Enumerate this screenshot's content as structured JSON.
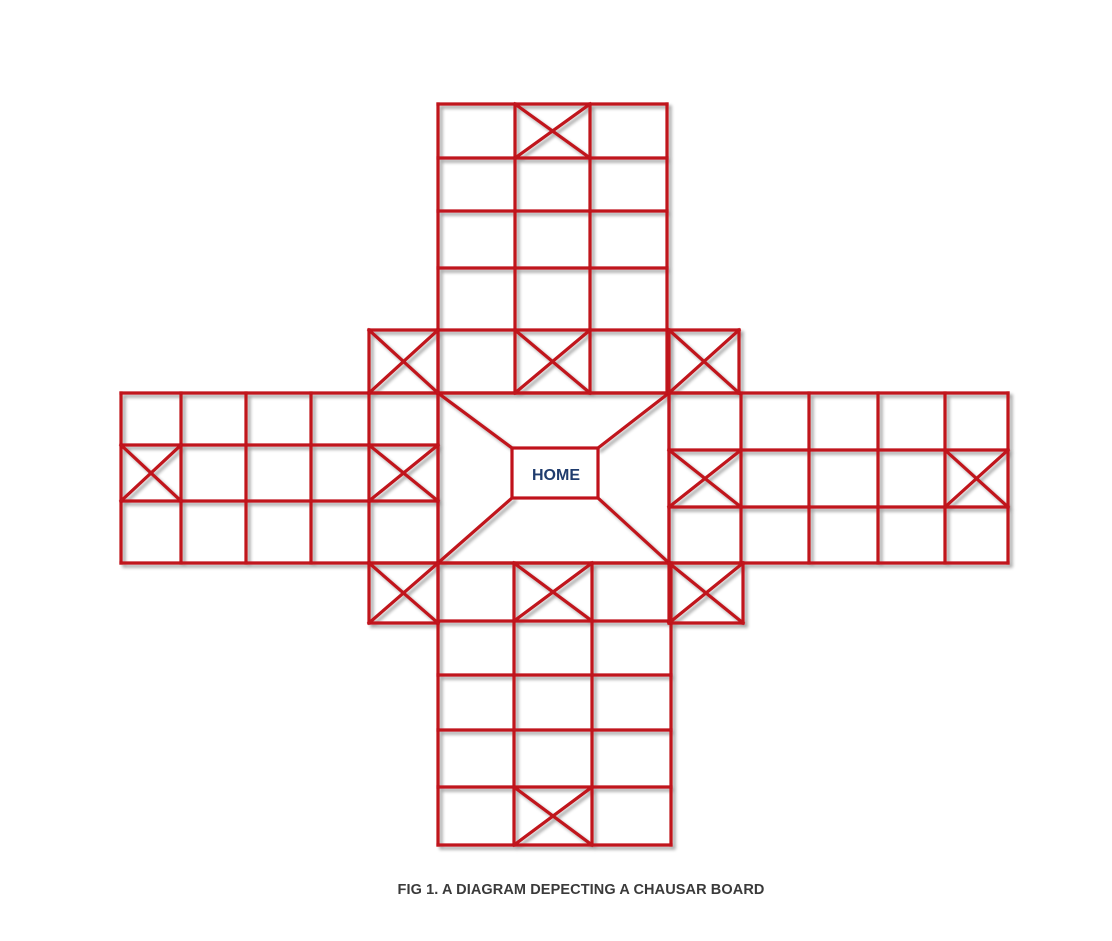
{
  "diagram": {
    "home_label": "HOME",
    "caption": "FIG 1.  A DIAGRAM DEPECTING A CHAUSAR BOARD",
    "line_color": "#c0121b",
    "shadow_color": "#b8b8b8",
    "home_text_color": "#1f3c6e"
  }
}
